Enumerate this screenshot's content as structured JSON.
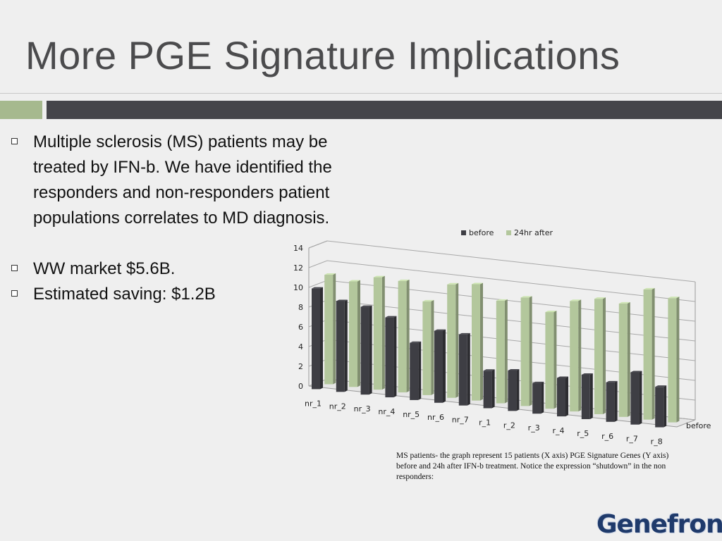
{
  "slide": {
    "title": "More PGE Signature Implications",
    "bullets": [
      "Multiple sclerosis (MS) patients may be treated by IFN-b. We have identified the responders and non-responders  patient populations correlates to MD diagnosis.",
      "WW market $5.6B.",
      "Estimated saving: $1.2B"
    ],
    "caption": "MS patients- the graph represent 15 patients (X axis) PGE Signature Genes (Y axis) before and 24h after IFN-b treatment. Notice the  expression “shutdown” in the non responders:",
    "logo_text": "Genefron"
  },
  "colors": {
    "title": "#4b4b4d",
    "accent_green": "#a6b98e",
    "accent_dark": "#45454a",
    "bar_before": "#3e3e44",
    "bar_after": "#b3c79c"
  },
  "chart_data": {
    "type": "bar",
    "subtype": "3d-column",
    "categories": [
      "nr_1",
      "nr_2",
      "nr_3",
      "nr_4",
      "nr_5",
      "nr_6",
      "nr_7",
      "r_1",
      "r_2",
      "r_3",
      "r_4",
      "r_5",
      "r_6",
      "r_7",
      "r_8"
    ],
    "series": [
      {
        "name": "before",
        "values": [
          10.2,
          9.2,
          8.9,
          8.1,
          5.8,
          7.3,
          7.2,
          3.8,
          4.1,
          3.1,
          3.9,
          4.5,
          4.0,
          5.3,
          4.1
        ]
      },
      {
        "name": "24hr after",
        "values": [
          11.1,
          10.7,
          11.4,
          11.3,
          9.5,
          11.5,
          11.8,
          10.4,
          11.0,
          9.8,
          11.2,
          11.7,
          11.5,
          13.2,
          12.6
        ]
      }
    ],
    "ylim": [
      0,
      14
    ],
    "yticks": [
      "0",
      "2",
      "4",
      "6",
      "8",
      "10",
      "12",
      "14"
    ],
    "depth_axis_label": "before",
    "legend": [
      "before",
      "24hr after"
    ],
    "legend_position": "top",
    "grid": true
  }
}
